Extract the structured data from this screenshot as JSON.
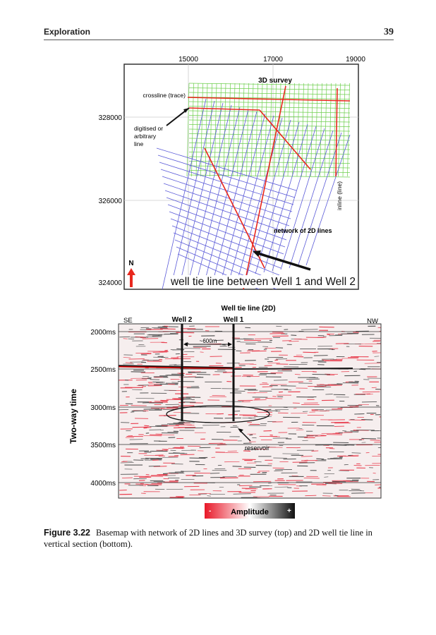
{
  "header": {
    "section": "Exploration",
    "page_number": "39"
  },
  "basemap": {
    "x_ticks": [
      "15000",
      "17000",
      "19000"
    ],
    "y_ticks": [
      "328000",
      "326000",
      "324000"
    ],
    "labels": {
      "survey": "3D survey",
      "crossline": "crossline (trace)",
      "digitised": [
        "digitised or",
        "arbitrary",
        "line"
      ],
      "inline": "inline (line)",
      "network": "network of 2D lines",
      "well_tie": "well tie line between Well 1 and Well 2",
      "north": "N"
    },
    "colors": {
      "grid": "#6fcf4f",
      "lines2d": "#5a5ad8",
      "red": "#e8281e"
    }
  },
  "section": {
    "title": "Well tie line (2D)",
    "left_dir": "SE",
    "right_dir": "NW",
    "wells": [
      "Well 2",
      "Well 1"
    ],
    "distance": "~600m",
    "y_label": "Two-way time",
    "y_ticks": [
      "2000ms",
      "2500ms",
      "3000ms",
      "3500ms",
      "4000ms"
    ],
    "annotation": "reservoir",
    "colorbar": {
      "minus": "-",
      "label": "Amplitude",
      "plus": "+"
    }
  },
  "caption": {
    "label": "Figure 3.22",
    "text": "Basemap with network of 2D lines and 3D survey (top) and 2D well tie line in vertical section (bottom)."
  }
}
